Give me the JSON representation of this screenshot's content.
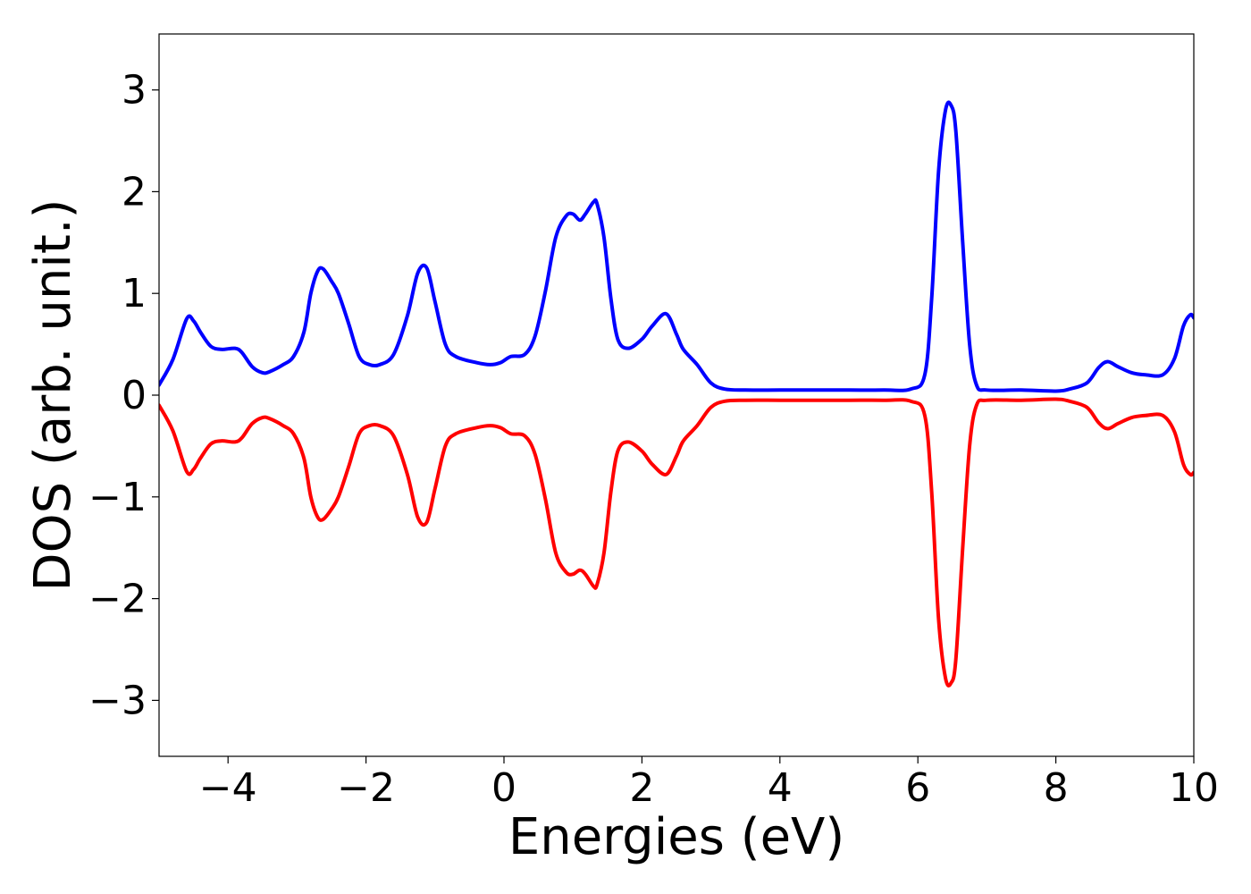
{
  "chart_data": {
    "type": "line",
    "title": "",
    "xlabel": "Energies (eV)",
    "ylabel": "DOS (arb. unit.)",
    "xlim": [
      -5,
      10
    ],
    "ylim": [
      -3.55,
      3.55
    ],
    "xticks": [
      -4,
      -2,
      0,
      2,
      4,
      6,
      8,
      10
    ],
    "xtick_labels": [
      "−4",
      "−2",
      "0",
      "2",
      "4",
      "6",
      "8",
      "10"
    ],
    "yticks": [
      -3,
      -2,
      -1,
      0,
      1,
      2,
      3
    ],
    "ytick_labels": [
      "−3",
      "−2",
      "−1",
      "0",
      "1",
      "2",
      "3"
    ],
    "grid": false,
    "legend": null,
    "series": [
      {
        "color": "#0000ff",
        "x": [
          -5.0,
          -4.8,
          -4.6,
          -4.5,
          -4.4,
          -4.25,
          -4.1,
          -3.9,
          -3.8,
          -3.65,
          -3.5,
          -3.4,
          -3.2,
          -3.05,
          -2.9,
          -2.8,
          -2.7,
          -2.62,
          -2.5,
          -2.4,
          -2.25,
          -2.1,
          -1.95,
          -1.8,
          -1.6,
          -1.4,
          -1.25,
          -1.12,
          -1.0,
          -0.85,
          -0.7,
          -0.4,
          -0.2,
          -0.05,
          0.1,
          0.3,
          0.45,
          0.6,
          0.75,
          0.9,
          1.0,
          1.1,
          1.18,
          1.3,
          1.35,
          1.45,
          1.55,
          1.65,
          1.8,
          2.0,
          2.15,
          2.35,
          2.5,
          2.6,
          2.8,
          3.0,
          3.2,
          3.5,
          4.0,
          4.5,
          5.0,
          5.5,
          5.9,
          6.1,
          6.2,
          6.3,
          6.4,
          6.48,
          6.55,
          6.65,
          6.75,
          6.85,
          7.0,
          7.5,
          8.0,
          8.2,
          8.45,
          8.62,
          8.75,
          8.9,
          9.1,
          9.3,
          9.55,
          9.72,
          9.85,
          9.95,
          10.0
        ],
        "y": [
          0.1,
          0.35,
          0.75,
          0.73,
          0.62,
          0.48,
          0.45,
          0.46,
          0.42,
          0.28,
          0.22,
          0.23,
          0.3,
          0.38,
          0.62,
          1.0,
          1.22,
          1.24,
          1.12,
          1.0,
          0.7,
          0.38,
          0.3,
          0.3,
          0.4,
          0.78,
          1.2,
          1.25,
          0.92,
          0.5,
          0.38,
          0.32,
          0.3,
          0.32,
          0.38,
          0.4,
          0.58,
          1.02,
          1.55,
          1.76,
          1.78,
          1.72,
          1.78,
          1.9,
          1.88,
          1.55,
          0.95,
          0.55,
          0.46,
          0.55,
          0.68,
          0.8,
          0.6,
          0.45,
          0.3,
          0.12,
          0.06,
          0.05,
          0.05,
          0.05,
          0.05,
          0.05,
          0.06,
          0.2,
          0.95,
          2.2,
          2.8,
          2.85,
          2.6,
          1.5,
          0.5,
          0.1,
          0.05,
          0.05,
          0.04,
          0.06,
          0.12,
          0.27,
          0.33,
          0.28,
          0.22,
          0.2,
          0.2,
          0.36,
          0.68,
          0.79,
          0.76
        ]
      },
      {
        "color": "#ff0000",
        "x": [
          -5.0,
          -4.8,
          -4.6,
          -4.5,
          -4.4,
          -4.25,
          -4.1,
          -3.9,
          -3.8,
          -3.65,
          -3.5,
          -3.4,
          -3.2,
          -3.05,
          -2.9,
          -2.8,
          -2.7,
          -2.62,
          -2.5,
          -2.4,
          -2.25,
          -2.1,
          -1.95,
          -1.8,
          -1.6,
          -1.4,
          -1.25,
          -1.12,
          -1.0,
          -0.85,
          -0.7,
          -0.4,
          -0.2,
          -0.05,
          0.1,
          0.3,
          0.45,
          0.6,
          0.75,
          0.9,
          1.0,
          1.1,
          1.18,
          1.3,
          1.35,
          1.45,
          1.55,
          1.65,
          1.8,
          2.0,
          2.15,
          2.35,
          2.5,
          2.6,
          2.8,
          3.0,
          3.2,
          3.5,
          4.0,
          4.5,
          5.0,
          5.5,
          5.9,
          6.1,
          6.2,
          6.3,
          6.4,
          6.48,
          6.55,
          6.65,
          6.75,
          6.85,
          7.0,
          7.5,
          8.0,
          8.2,
          8.45,
          8.62,
          8.75,
          8.9,
          9.1,
          9.3,
          9.55,
          9.72,
          9.85,
          9.95,
          10.0
        ],
        "y": [
          -0.1,
          -0.35,
          -0.75,
          -0.73,
          -0.62,
          -0.48,
          -0.45,
          -0.46,
          -0.42,
          -0.28,
          -0.22,
          -0.23,
          -0.3,
          -0.38,
          -0.62,
          -1.0,
          -1.2,
          -1.22,
          -1.12,
          -1.0,
          -0.7,
          -0.38,
          -0.3,
          -0.3,
          -0.4,
          -0.78,
          -1.2,
          -1.25,
          -0.92,
          -0.5,
          -0.38,
          -0.32,
          -0.3,
          -0.32,
          -0.38,
          -0.4,
          -0.58,
          -1.02,
          -1.55,
          -1.74,
          -1.76,
          -1.72,
          -1.76,
          -1.88,
          -1.86,
          -1.55,
          -0.95,
          -0.55,
          -0.46,
          -0.55,
          -0.68,
          -0.78,
          -0.6,
          -0.45,
          -0.3,
          -0.12,
          -0.06,
          -0.05,
          -0.05,
          -0.05,
          -0.05,
          -0.05,
          -0.06,
          -0.2,
          -0.95,
          -2.2,
          -2.78,
          -2.83,
          -2.6,
          -1.5,
          -0.5,
          -0.1,
          -0.05,
          -0.05,
          -0.04,
          -0.06,
          -0.12,
          -0.27,
          -0.33,
          -0.28,
          -0.22,
          -0.2,
          -0.2,
          -0.36,
          -0.68,
          -0.78,
          -0.76
        ]
      }
    ]
  }
}
